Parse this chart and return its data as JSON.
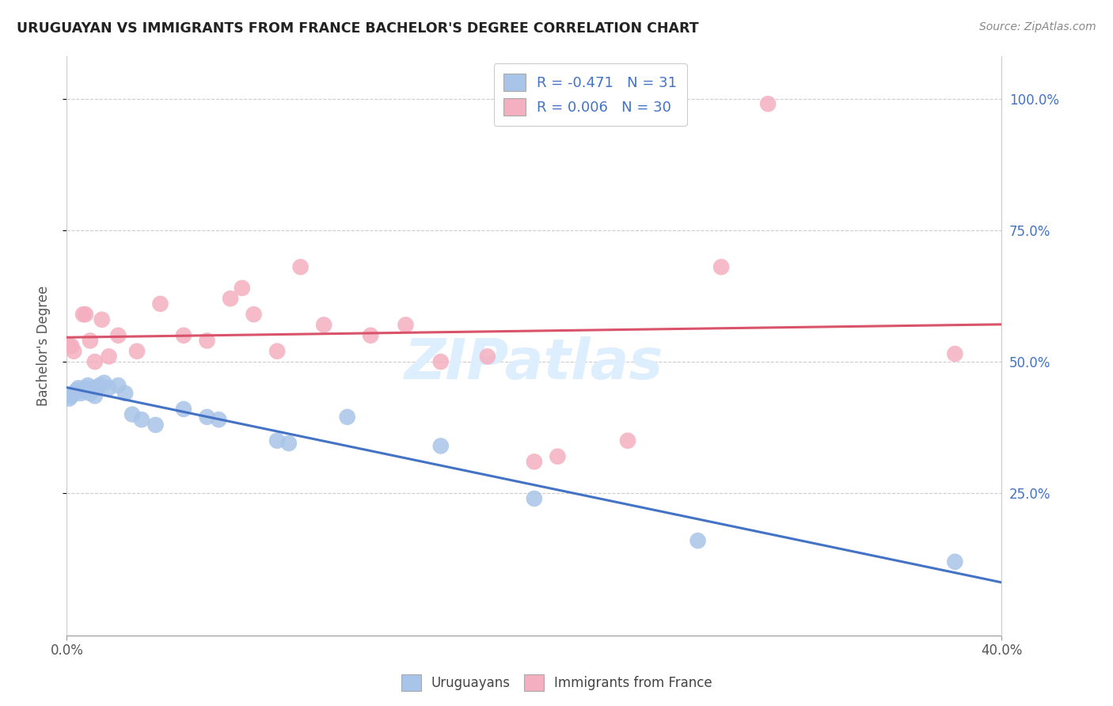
{
  "title": "URUGUAYAN VS IMMIGRANTS FROM FRANCE BACHELOR'S DEGREE CORRELATION CHART",
  "source_text": "Source: ZipAtlas.com",
  "ylabel": "Bachelor's Degree",
  "legend_label1": "Uruguayans",
  "legend_label2": "Immigrants from France",
  "r1": "-0.471",
  "n1": "31",
  "r2": "0.006",
  "n2": "30",
  "color1": "#a8c4e8",
  "color2": "#f4afc0",
  "line_color1": "#4472c4",
  "line_color2": "#d9536a",
  "background_color": "#ffffff",
  "watermark": "ZIPatlas",
  "xlim": [
    0.0,
    0.4
  ],
  "ylim": [
    -0.02,
    1.08
  ],
  "yticks": [
    0.25,
    0.5,
    0.75,
    1.0
  ],
  "ytick_labels": [
    "25.0%",
    "50.0%",
    "75.0%",
    "100.0%"
  ],
  "xticks": [
    0.0,
    0.4
  ],
  "xtick_labels": [
    "0.0%",
    "40.0%"
  ],
  "uruguayan_x": [
    0.001,
    0.002,
    0.003,
    0.004,
    0.005,
    0.006,
    0.007,
    0.008,
    0.009,
    0.01,
    0.011,
    0.012,
    0.013,
    0.014,
    0.016,
    0.018,
    0.022,
    0.025,
    0.028,
    0.032,
    0.038,
    0.05,
    0.06,
    0.065,
    0.09,
    0.095,
    0.12,
    0.16,
    0.2,
    0.27,
    0.38
  ],
  "uruguayan_y": [
    0.43,
    0.435,
    0.44,
    0.445,
    0.45,
    0.44,
    0.445,
    0.45,
    0.455,
    0.44,
    0.45,
    0.435,
    0.45,
    0.455,
    0.46,
    0.45,
    0.455,
    0.44,
    0.4,
    0.39,
    0.38,
    0.41,
    0.395,
    0.39,
    0.35,
    0.345,
    0.395,
    0.34,
    0.24,
    0.16,
    0.12
  ],
  "france_x": [
    0.001,
    0.002,
    0.003,
    0.007,
    0.008,
    0.01,
    0.012,
    0.015,
    0.018,
    0.022,
    0.03,
    0.04,
    0.05,
    0.06,
    0.07,
    0.075,
    0.08,
    0.09,
    0.1,
    0.11,
    0.13,
    0.145,
    0.16,
    0.18,
    0.2,
    0.21,
    0.24,
    0.28,
    0.3,
    0.38
  ],
  "france_y": [
    0.53,
    0.53,
    0.52,
    0.59,
    0.59,
    0.54,
    0.5,
    0.58,
    0.51,
    0.55,
    0.52,
    0.61,
    0.55,
    0.54,
    0.62,
    0.64,
    0.59,
    0.52,
    0.68,
    0.57,
    0.55,
    0.57,
    0.5,
    0.51,
    0.31,
    0.32,
    0.35,
    0.68,
    0.99,
    0.515
  ]
}
